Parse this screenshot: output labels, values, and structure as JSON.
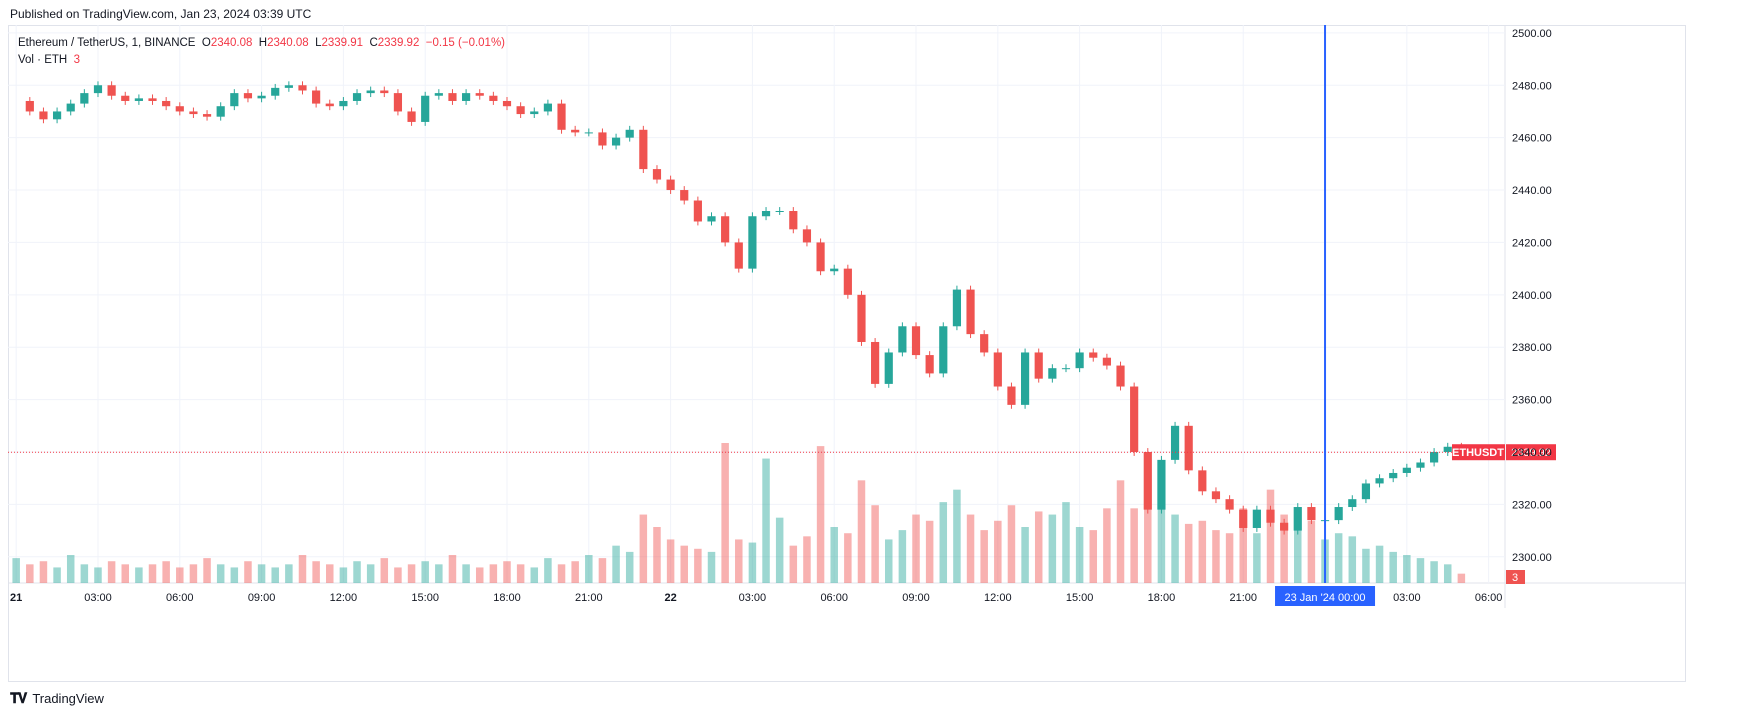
{
  "published": "Published on TradingView.com, Jan 23, 2024 03:39 UTC",
  "legend": {
    "symbol": "Ethereum / TetherUS, 1, BINANCE",
    "o_label": "O",
    "o_value": "2340.08",
    "h_label": "H",
    "h_value": "2340.08",
    "l_label": "L",
    "l_value": "2339.91",
    "c_label": "C",
    "c_value": "2339.92",
    "change": "−0.15 (−0.01%)",
    "vol_label": "Vol · ETH",
    "vol_value": "3"
  },
  "price_tag": {
    "symbol": "ETHUSDT",
    "value": "2339.92"
  },
  "volume_tag": "3",
  "crosshair_label": "23 Jan '24   00:00",
  "footer": {
    "brand": "TradingView"
  },
  "colors": {
    "up": "#26a69a",
    "down": "#ef5350",
    "accent": "#2962ff",
    "last_price": "#f23645"
  },
  "chart_data": {
    "type": "line",
    "title": "Ethereum / TetherUS, 1, BINANCE",
    "ylim": [
      2290,
      2503
    ],
    "y_ticks": [
      2300,
      2320,
      2340,
      2360,
      2380,
      2400,
      2420,
      2440,
      2460,
      2480,
      2500
    ],
    "y_tick_labels": [
      "2300.00",
      "2320.00",
      "2340.00",
      "2360.00",
      "2380.00",
      "2400.00",
      "2420.00",
      "2440.00",
      "2460.00",
      "2480.00",
      "2500.00"
    ],
    "x_unit": "hours since Jan 21 00:00",
    "xlim": [
      -0.3,
      54.6
    ],
    "x_ticks": [
      0,
      3,
      6,
      9,
      12,
      15,
      18,
      21,
      24,
      27,
      30,
      33,
      36,
      39,
      42,
      45,
      48,
      51,
      54
    ],
    "x_tick_labels": [
      "21",
      "03:00",
      "06:00",
      "09:00",
      "12:00",
      "15:00",
      "18:00",
      "21:00",
      "22",
      "03:00",
      "06:00",
      "09:00",
      "12:00",
      "15:00",
      "18:00",
      "21:00",
      "",
      "03:00",
      "06:00"
    ],
    "crosshair_x": 48,
    "last_price": 2339.92,
    "series": [
      {
        "name": "ETHUSDT",
        "x": [
          0,
          0.5,
          1,
          1.5,
          2,
          2.5,
          3,
          3.5,
          4,
          4.5,
          5,
          5.5,
          6,
          6.5,
          7,
          7.5,
          8,
          8.5,
          9,
          9.5,
          10,
          10.5,
          11,
          11.5,
          12,
          12.5,
          13,
          13.5,
          14,
          14.5,
          15,
          15.5,
          16,
          16.5,
          17,
          17.5,
          18,
          18.5,
          19,
          19.5,
          20,
          20.5,
          21,
          21.5,
          22,
          22.5,
          23,
          23.5,
          24,
          24.5,
          25,
          25.5,
          26,
          26.5,
          27,
          27.5,
          28,
          28.5,
          29,
          29.5,
          30,
          30.5,
          31,
          31.5,
          32,
          32.5,
          33,
          33.5,
          34,
          34.5,
          35,
          35.5,
          36,
          36.5,
          37,
          37.5,
          38,
          38.5,
          39,
          39.5,
          40,
          40.5,
          41,
          41.5,
          42,
          42.5,
          43,
          43.5,
          44,
          44.5,
          45,
          45.5,
          46,
          46.5,
          47,
          47.5,
          48,
          48.5,
          49,
          49.5,
          50,
          50.5,
          51,
          51.5,
          52,
          52.5,
          53
        ],
        "y": [
          2474,
          2470,
          2467,
          2470,
          2473,
          2477,
          2480,
          2476,
          2474,
          2475,
          2474,
          2472,
          2470,
          2469,
          2468,
          2472,
          2477,
          2475,
          2476,
          2479,
          2480,
          2478,
          2473,
          2472,
          2474,
          2477,
          2478,
          2477,
          2470,
          2466,
          2476,
          2477,
          2474,
          2477,
          2476,
          2474,
          2472,
          2469,
          2470,
          2473,
          2463,
          2462,
          2462,
          2457,
          2460,
          2463,
          2448,
          2444,
          2440,
          2436,
          2428,
          2430,
          2420,
          2410,
          2430,
          2432,
          2432,
          2425,
          2420,
          2409,
          2410,
          2400,
          2382,
          2366,
          2378,
          2388,
          2377,
          2370,
          2388,
          2402,
          2385,
          2378,
          2365,
          2358,
          2378,
          2368,
          2372,
          2372,
          2378,
          2376,
          2373,
          2365,
          2340,
          2318,
          2337,
          2350,
          2333,
          2325,
          2322,
          2318,
          2311,
          2318,
          2313,
          2310,
          2319,
          2314,
          2314,
          2319,
          2322,
          2328,
          2330,
          2332,
          2334,
          2336,
          2340,
          2342,
          2340
        ]
      }
    ],
    "volume": {
      "name": "Vol · ETH",
      "x": [
        0,
        0.5,
        1,
        1.5,
        2,
        2.5,
        3,
        3.5,
        4,
        4.5,
        5,
        5.5,
        6,
        6.5,
        7,
        7.5,
        8,
        8.5,
        9,
        9.5,
        10,
        10.5,
        11,
        11.5,
        12,
        12.5,
        13,
        13.5,
        14,
        14.5,
        15,
        15.5,
        16,
        16.5,
        17,
        17.5,
        18,
        18.5,
        19,
        19.5,
        20,
        20.5,
        21,
        21.5,
        22,
        22.5,
        23,
        23.5,
        24,
        24.5,
        25,
        25.5,
        26,
        26.5,
        27,
        27.5,
        28,
        28.5,
        29,
        29.5,
        30,
        30.5,
        31,
        31.5,
        32,
        32.5,
        33,
        33.5,
        34,
        34.5,
        35,
        35.5,
        36,
        36.5,
        37,
        37.5,
        38,
        38.5,
        39,
        39.5,
        40,
        40.5,
        41,
        41.5,
        42,
        42.5,
        43,
        43.5,
        44,
        44.5,
        45,
        45.5,
        46,
        46.5,
        47,
        47.5,
        48,
        48.5,
        49,
        49.5,
        50,
        50.5,
        51,
        51.5,
        52,
        52.5,
        53
      ],
      "y": [
        8,
        6,
        7,
        5,
        9,
        6,
        5,
        7,
        6,
        5,
        6,
        7,
        5,
        6,
        8,
        6,
        5,
        7,
        6,
        5,
        6,
        9,
        7,
        6,
        5,
        7,
        6,
        8,
        5,
        6,
        7,
        6,
        9,
        6,
        5,
        6,
        7,
        6,
        5,
        8,
        6,
        7,
        9,
        8,
        12,
        10,
        22,
        18,
        14,
        12,
        11,
        10,
        45,
        14,
        13,
        40,
        21,
        12,
        15,
        44,
        18,
        16,
        33,
        25,
        14,
        17,
        22,
        20,
        26,
        30,
        22,
        17,
        20,
        25,
        18,
        23,
        22,
        26,
        18,
        17,
        24,
        33,
        24,
        30,
        27,
        22,
        19,
        20,
        17,
        16,
        24,
        16,
        30,
        22,
        18,
        20,
        14,
        16,
        15,
        11,
        12,
        10,
        9,
        8,
        7,
        6,
        3
      ]
    }
  }
}
